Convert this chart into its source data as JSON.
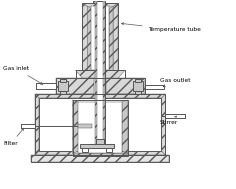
{
  "line_color": "#555555",
  "hatch_lw": 0.3,
  "labels": {
    "gas_inlet": "Gas inlet",
    "temperature_tube": "Temperature tube",
    "gas_outlet": "Gas outlet",
    "filter": "Filter",
    "stirrer": "Stirrer"
  },
  "label_fontsize": 4.2,
  "line_width": 0.7
}
